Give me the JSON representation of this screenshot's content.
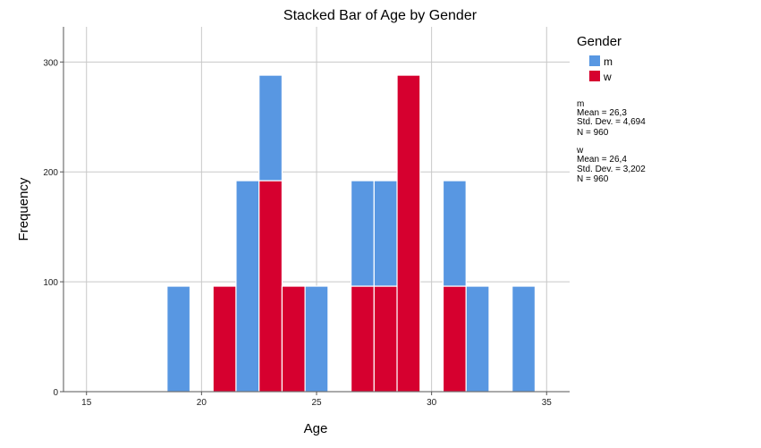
{
  "chart_data": {
    "type": "bar",
    "title": "Stacked Bar of Age by Gender",
    "xlabel": "Age",
    "ylabel": "Frequency",
    "xlim": [
      14,
      36
    ],
    "ylim": [
      0,
      332
    ],
    "x_ticks": [
      15,
      20,
      25,
      30,
      35
    ],
    "y_ticks": [
      0,
      100,
      200,
      300
    ],
    "grid": true,
    "legend_position": "right",
    "legend_title": "Gender",
    "bin_width": 1,
    "categories": [
      19,
      21,
      22,
      23,
      24,
      25,
      27,
      28,
      29,
      31,
      32,
      34
    ],
    "series": [
      {
        "name": "w",
        "color": "#d6002f",
        "values": [
          0,
          96,
          0,
          192,
          96,
          0,
          96,
          96,
          288,
          96,
          0,
          0
        ]
      },
      {
        "name": "m",
        "color": "#5897e2",
        "values": [
          96,
          0,
          192,
          96,
          0,
          96,
          96,
          96,
          0,
          96,
          96,
          96
        ]
      }
    ],
    "stats": [
      {
        "group": "m",
        "mean": "Mean = 26,3",
        "sd": "Std. Dev. = 4,694",
        "n": "N = 960"
      },
      {
        "group": "w",
        "mean": "Mean = 26,4",
        "sd": "Std. Dev. = 3,202",
        "n": "N = 960"
      }
    ]
  }
}
